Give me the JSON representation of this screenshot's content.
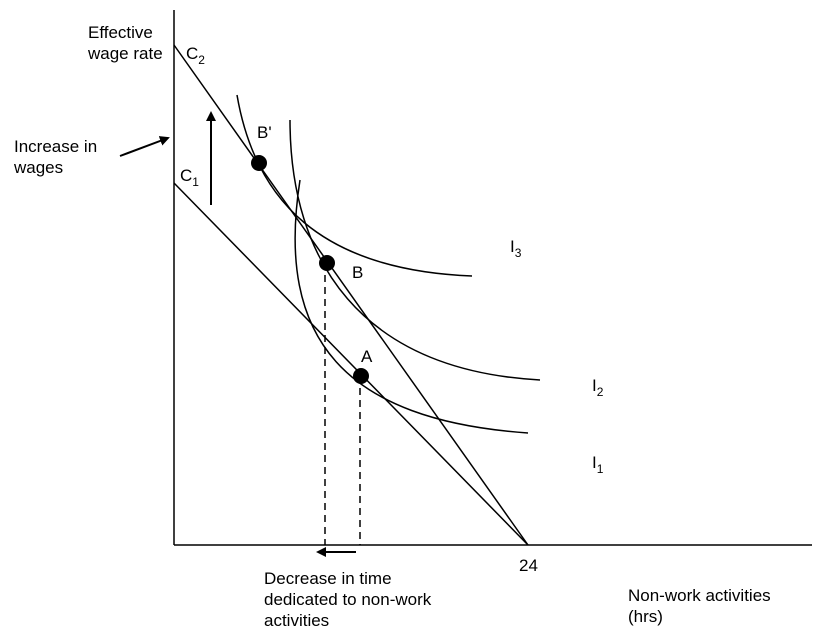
{
  "axes": {
    "y_label": "Effective\nwage rate",
    "x_label": "Non-work activities\n(hrs)",
    "x_tick": "24"
  },
  "budget_lines": [
    {
      "letter": "C",
      "sub": "1"
    },
    {
      "letter": "C",
      "sub": "2"
    }
  ],
  "indifference_curves": [
    {
      "letter": "I",
      "sub": "1"
    },
    {
      "letter": "I",
      "sub": "2"
    },
    {
      "letter": "I",
      "sub": "3"
    }
  ],
  "points": [
    "A",
    "B",
    "B'"
  ],
  "annotations": {
    "wage_increase": "Increase in\nwages",
    "time_decrease": "Decrease in time\ndedicated to non-work\nactivities"
  }
}
